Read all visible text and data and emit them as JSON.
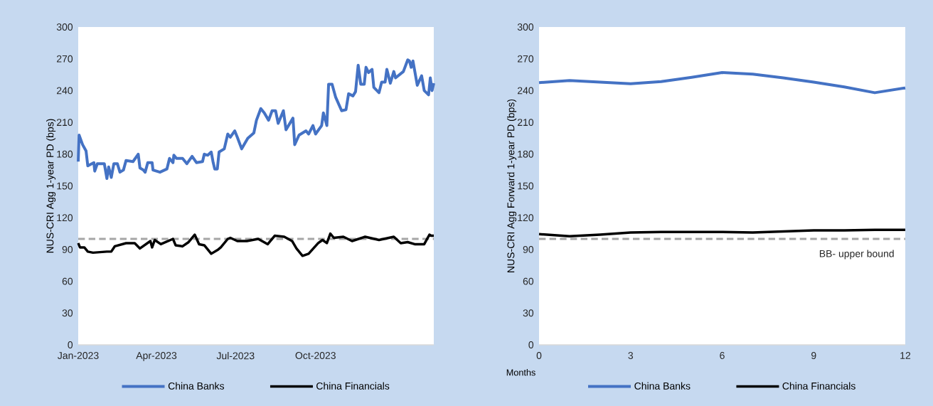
{
  "chart_data": [
    {
      "type": "line",
      "ylabel": "NUS-CRI Agg 1-year PD (bps)",
      "xlim": [
        "2023-01-01",
        "2024-02-14"
      ],
      "ylim": [
        0,
        300
      ],
      "xticks": [
        {
          "value": "2023-01-01",
          "label": "Jan-2023"
        },
        {
          "value": "2023-04-01",
          "label": "Apr-2023"
        },
        {
          "value": "2023-07-01",
          "label": "Jul-2023"
        },
        {
          "value": "2023-10-01",
          "label": "Oct-2023"
        }
      ],
      "yticks": [
        0,
        30,
        60,
        90,
        120,
        150,
        180,
        210,
        240,
        270,
        300
      ],
      "legend": "bottom",
      "ref_lines": [
        {
          "axis": "y",
          "value": 100,
          "color": "#a6a6a6",
          "line_style": "dashed"
        }
      ],
      "series": [
        {
          "name": "China Banks",
          "color": "#4472c4",
          "x": [
            "2023-01-01",
            "2023-01-02",
            "2023-01-06",
            "2023-01-10",
            "2023-01-12",
            "2023-01-19",
            "2023-01-20",
            "2023-01-23",
            "2023-01-31",
            "2023-02-03",
            "2023-02-05",
            "2023-02-08",
            "2023-02-11",
            "2023-02-15",
            "2023-02-18",
            "2023-02-22",
            "2023-02-25",
            "2023-03-05",
            "2023-03-11",
            "2023-03-13",
            "2023-03-17",
            "2023-03-19",
            "2023-03-22",
            "2023-03-27",
            "2023-03-28",
            "2023-04-05",
            "2023-04-13",
            "2023-04-16",
            "2023-04-20",
            "2023-04-21",
            "2023-04-24",
            "2023-05-01",
            "2023-05-06",
            "2023-05-12",
            "2023-05-17",
            "2023-05-24",
            "2023-05-26",
            "2023-05-30",
            "2023-06-03",
            "2023-06-05",
            "2023-06-07",
            "2023-06-10",
            "2023-06-12",
            "2023-06-18",
            "2023-06-22",
            "2023-06-25",
            "2023-06-30",
            "2023-07-03",
            "2023-07-08",
            "2023-07-15",
            "2023-07-22",
            "2023-07-25",
            "2023-07-30",
            "2023-08-03",
            "2023-08-08",
            "2023-08-12",
            "2023-08-16",
            "2023-08-19",
            "2023-08-25",
            "2023-08-28",
            "2023-09-05",
            "2023-09-07",
            "2023-09-12",
            "2023-09-20",
            "2023-09-23",
            "2023-09-28",
            "2023-10-01",
            "2023-10-08",
            "2023-10-10",
            "2023-10-14",
            "2023-10-16",
            "2023-10-20",
            "2023-10-24",
            "2023-10-31",
            "2023-11-05",
            "2023-11-08",
            "2023-11-13",
            "2023-11-16",
            "2023-11-19",
            "2023-11-22",
            "2023-11-26",
            "2023-11-28",
            "2023-12-01",
            "2023-12-05",
            "2023-12-07",
            "2023-12-13",
            "2023-12-16",
            "2023-12-20",
            "2023-12-22",
            "2023-12-26",
            "2023-12-30",
            "2024-01-01",
            "2024-01-10",
            "2024-01-15",
            "2024-01-17",
            "2024-01-19",
            "2024-01-21",
            "2024-01-26",
            "2024-01-31",
            "2024-02-03",
            "2024-02-08",
            "2024-02-10",
            "2024-02-12",
            "2024-02-14"
          ],
          "values": [
            173,
            198,
            189,
            183,
            169,
            172,
            164,
            171,
            171,
            157,
            168,
            158,
            171,
            171,
            163,
            165,
            174,
            173,
            180,
            167,
            165,
            163,
            172,
            172,
            165,
            163,
            166,
            176,
            172,
            179,
            176,
            176,
            171,
            178,
            172,
            173,
            180,
            179,
            182,
            173,
            166,
            166,
            182,
            185,
            199,
            196,
            202,
            196,
            185,
            195,
            200,
            212,
            223,
            219,
            212,
            221,
            221,
            209,
            221,
            203,
            214,
            189,
            198,
            202,
            199,
            207,
            199,
            207,
            219,
            207,
            246,
            246,
            234,
            221,
            222,
            237,
            235,
            239,
            264,
            246,
            246,
            262,
            257,
            260,
            243,
            238,
            248,
            248,
            260,
            247,
            258,
            252,
            258,
            269,
            268,
            262,
            268,
            245,
            254,
            240,
            236,
            252,
            240,
            247
          ]
        },
        {
          "name": "China Financials",
          "color": "#000000",
          "x": [
            "2023-01-01",
            "2023-01-03",
            "2023-01-08",
            "2023-01-12",
            "2023-01-18",
            "2023-02-03",
            "2023-02-08",
            "2023-02-12",
            "2023-02-25",
            "2023-03-07",
            "2023-03-13",
            "2023-03-25",
            "2023-03-27",
            "2023-03-30",
            "2023-04-06",
            "2023-04-20",
            "2023-04-23",
            "2023-05-01",
            "2023-05-08",
            "2023-05-15",
            "2023-05-20",
            "2023-05-26",
            "2023-06-03",
            "2023-06-11",
            "2023-06-14",
            "2023-06-22",
            "2023-06-25",
            "2023-07-03",
            "2023-07-14",
            "2023-07-27",
            "2023-08-07",
            "2023-08-15",
            "2023-08-26",
            "2023-09-04",
            "2023-09-09",
            "2023-09-16",
            "2023-09-23",
            "2023-10-04",
            "2023-10-09",
            "2023-10-14",
            "2023-10-18",
            "2023-10-22",
            "2023-11-02",
            "2023-11-12",
            "2023-11-27",
            "2023-12-13",
            "2023-12-30",
            "2024-01-07",
            "2024-01-15",
            "2024-01-23",
            "2024-02-03",
            "2024-02-09",
            "2024-02-11",
            "2024-02-14"
          ],
          "values": [
            96,
            92,
            92,
            88,
            87,
            88,
            88,
            93,
            96,
            96,
            91,
            98,
            92,
            99,
            95,
            100,
            94,
            93,
            97,
            104,
            95,
            94,
            86,
            90,
            92,
            100,
            101,
            98,
            98,
            100,
            95,
            103,
            102,
            98,
            91,
            84,
            86,
            96,
            99,
            96,
            105,
            101,
            102,
            98,
            102,
            99,
            102,
            96,
            97,
            95,
            95,
            104,
            103,
            103
          ]
        }
      ]
    },
    {
      "type": "line",
      "xlabel": "Months",
      "ylabel": "NUS-CRI Agg Forward 1-year PD (bps)",
      "xlim": [
        0,
        12
      ],
      "ylim": [
        0,
        300
      ],
      "xticks": [
        0,
        3,
        6,
        9,
        12
      ],
      "yticks": [
        0,
        30,
        60,
        90,
        120,
        150,
        180,
        210,
        240,
        270,
        300
      ],
      "legend": "bottom",
      "x": [
        0,
        1,
        2,
        3,
        4,
        5,
        6,
        7,
        8,
        9,
        10,
        11,
        12
      ],
      "ref_lines": [
        {
          "axis": "y",
          "value": 100,
          "label": "BB- upper bound",
          "color": "#a6a6a6",
          "line_style": "dashed"
        }
      ],
      "series": [
        {
          "name": "China Banks",
          "color": "#4472c4",
          "values": [
            247.5,
            249.5,
            248,
            246.5,
            248.5,
            252.5,
            257,
            255.5,
            252,
            248,
            243.5,
            238,
            242.5
          ]
        },
        {
          "name": "China Financials",
          "color": "#000000",
          "values": [
            104.5,
            102.5,
            104,
            106,
            106.5,
            106.5,
            106.5,
            106,
            107,
            108,
            108,
            108.5,
            108.5
          ]
        }
      ]
    }
  ]
}
